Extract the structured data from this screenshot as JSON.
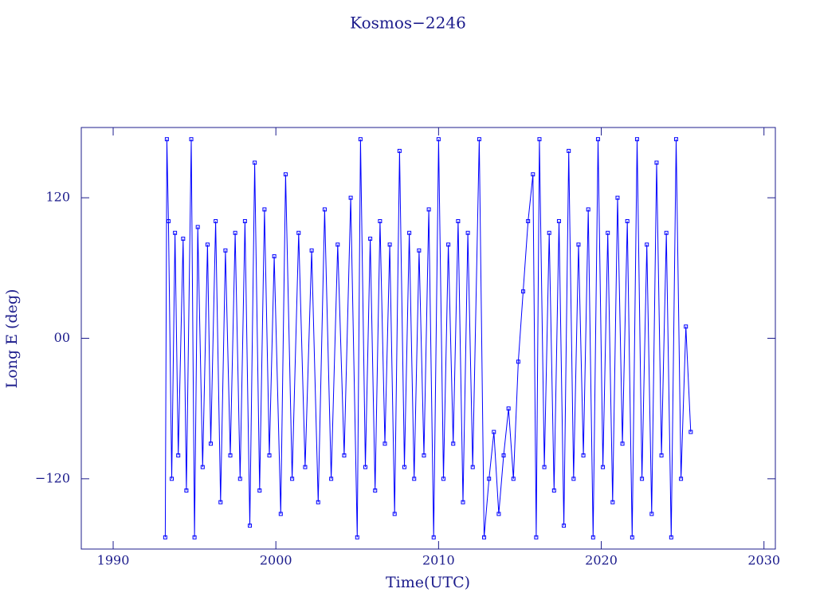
{
  "chart_data": {
    "type": "line",
    "title": "Kosmos−2246",
    "xlabel": "Time(UTC)",
    "ylabel": "Long E (deg)",
    "xlim": [
      1988.04,
      2030.7
    ],
    "ylim": [
      -180,
      180
    ],
    "xticks": [
      1990,
      2000,
      2010,
      2020,
      2030
    ],
    "yticks": [
      {
        "value": -120,
        "label": "−120"
      },
      {
        "value": 0,
        "label": "00"
      },
      120
    ],
    "x": [
      1993.2,
      1993.3,
      1993.4,
      1993.6,
      1993.8,
      1994.0,
      1994.3,
      1994.5,
      1994.8,
      1995.0,
      1995.2,
      1995.5,
      1995.8,
      1996.0,
      1996.3,
      1996.6,
      1996.9,
      1997.2,
      1997.5,
      1997.8,
      1998.1,
      1998.4,
      1998.7,
      1999.0,
      1999.3,
      1999.6,
      1999.9,
      2000.3,
      2000.6,
      2001.0,
      2001.4,
      2001.8,
      2002.2,
      2002.6,
      2003.0,
      2003.4,
      2003.8,
      2004.2,
      2004.6,
      2005.0,
      2005.2,
      2005.5,
      2005.8,
      2006.1,
      2006.4,
      2006.7,
      2007.0,
      2007.3,
      2007.6,
      2007.9,
      2008.2,
      2008.5,
      2008.8,
      2009.1,
      2009.4,
      2009.7,
      2010.0,
      2010.3,
      2010.6,
      2010.9,
      2011.2,
      2011.5,
      2011.8,
      2012.1,
      2012.5,
      2012.8,
      2013.1,
      2013.4,
      2013.7,
      2014.0,
      2014.3,
      2014.6,
      2014.9,
      2015.2,
      2015.5,
      2015.8,
      2016.0,
      2016.2,
      2016.5,
      2016.8,
      2017.1,
      2017.4,
      2017.7,
      2018.0,
      2018.3,
      2018.6,
      2018.9,
      2019.2,
      2019.5,
      2019.8,
      2020.1,
      2020.4,
      2020.7,
      2021.0,
      2021.3,
      2021.6,
      2021.9,
      2022.2,
      2022.5,
      2022.8,
      2023.1,
      2023.4,
      2023.7,
      2024.0,
      2024.3,
      2024.6,
      2024.9,
      2025.2,
      2025.5
    ],
    "series": [
      {
        "name": "Long E",
        "color": "#0000ff",
        "values": [
          -170,
          170,
          100,
          -120,
          90,
          -100,
          85,
          -130,
          170,
          -170,
          95,
          -110,
          80,
          -90,
          100,
          -140,
          75,
          -100,
          90,
          -120,
          100,
          -160,
          150,
          -130,
          110,
          -100,
          70,
          -150,
          140,
          -120,
          90,
          -110,
          75,
          -140,
          110,
          -120,
          80,
          -100,
          120,
          -170,
          170,
          -110,
          85,
          -130,
          100,
          -90,
          80,
          -150,
          160,
          -110,
          90,
          -120,
          75,
          -100,
          110,
          -170,
          170,
          -120,
          80,
          -90,
          100,
          -140,
          90,
          -110,
          170,
          -170,
          -120,
          -80,
          -150,
          -100,
          -60,
          -120,
          -20,
          40,
          100,
          140,
          -170,
          170,
          -110,
          90,
          -130,
          100,
          -160,
          160,
          -120,
          80,
          -100,
          110,
          -170,
          170,
          -110,
          90,
          -140,
          120,
          -90,
          100,
          -170,
          170,
          -120,
          80,
          -150,
          150,
          -100,
          90,
          -170,
          170,
          -120,
          10,
          -80
        ]
      }
    ],
    "axis_color": "#1c1c8c"
  }
}
